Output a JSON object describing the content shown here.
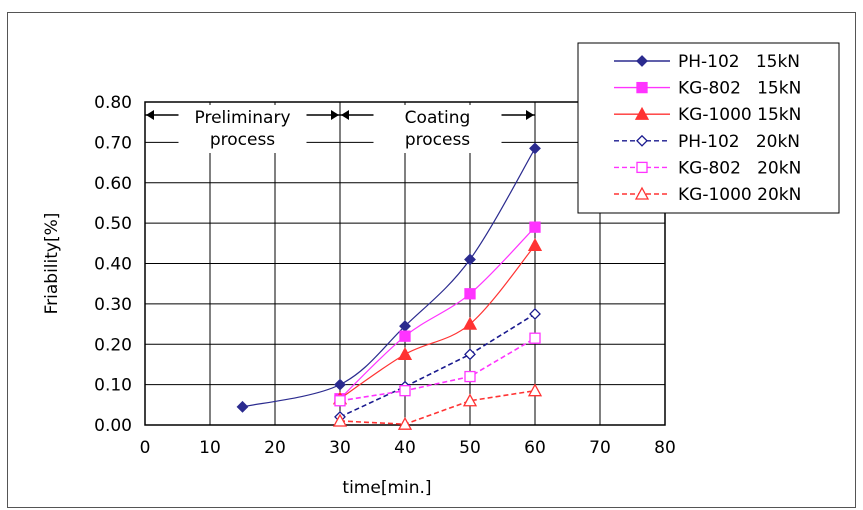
{
  "chart_data": {
    "type": "line",
    "xlabel": "time[min.]",
    "ylabel": "Friability[%]",
    "xlim": [
      0,
      80
    ],
    "ylim": [
      0,
      0.8
    ],
    "x_ticks": [
      "0",
      "10",
      "20",
      "30",
      "40",
      "50",
      "60",
      "70",
      "80"
    ],
    "y_ticks": [
      "0.00",
      "0.10",
      "0.20",
      "0.30",
      "0.40",
      "0.50",
      "0.60",
      "0.70",
      "0.80"
    ],
    "grid": true,
    "legend_position": "top-right",
    "annotations": [
      {
        "name": "preliminary",
        "lines": [
          "Preliminary",
          "process"
        ],
        "x_range": [
          0,
          30
        ]
      },
      {
        "name": "coating",
        "lines": [
          "Coating",
          "process"
        ],
        "x_range": [
          30,
          60
        ]
      }
    ],
    "series": [
      {
        "name": "PH-102   15kN",
        "color": "#2b2b8f",
        "marker": "diamond-filled",
        "dash": "solid",
        "x": [
          15,
          30,
          40,
          50,
          60
        ],
        "y": [
          0.045,
          0.1,
          0.245,
          0.41,
          0.685
        ]
      },
      {
        "name": "KG-802   15kN",
        "color": "#ff33ff",
        "marker": "square-filled",
        "dash": "solid",
        "x": [
          30,
          40,
          50,
          60
        ],
        "y": [
          0.065,
          0.22,
          0.325,
          0.49
        ]
      },
      {
        "name": "KG-1000 15kN",
        "color": "#ff3333",
        "marker": "triangle-filled",
        "dash": "solid",
        "x": [
          30,
          40,
          50,
          60
        ],
        "y": [
          0.065,
          0.175,
          0.25,
          0.445
        ]
      },
      {
        "name": "PH-102   20kN",
        "color": "#1a1a8f",
        "marker": "diamond-open",
        "dash": "dashed",
        "x": [
          30,
          40,
          50,
          60
        ],
        "y": [
          0.02,
          0.095,
          0.175,
          0.275
        ]
      },
      {
        "name": "KG-802   20kN",
        "color": "#ff33ff",
        "marker": "square-open",
        "dash": "dashed",
        "x": [
          30,
          40,
          50,
          60
        ],
        "y": [
          0.06,
          0.085,
          0.12,
          0.215
        ]
      },
      {
        "name": "KG-1000 20kN",
        "color": "#ff3333",
        "marker": "triangle-open",
        "dash": "dashed",
        "x": [
          30,
          40,
          50,
          60
        ],
        "y": [
          0.01,
          0.002,
          0.06,
          0.085
        ]
      }
    ]
  }
}
